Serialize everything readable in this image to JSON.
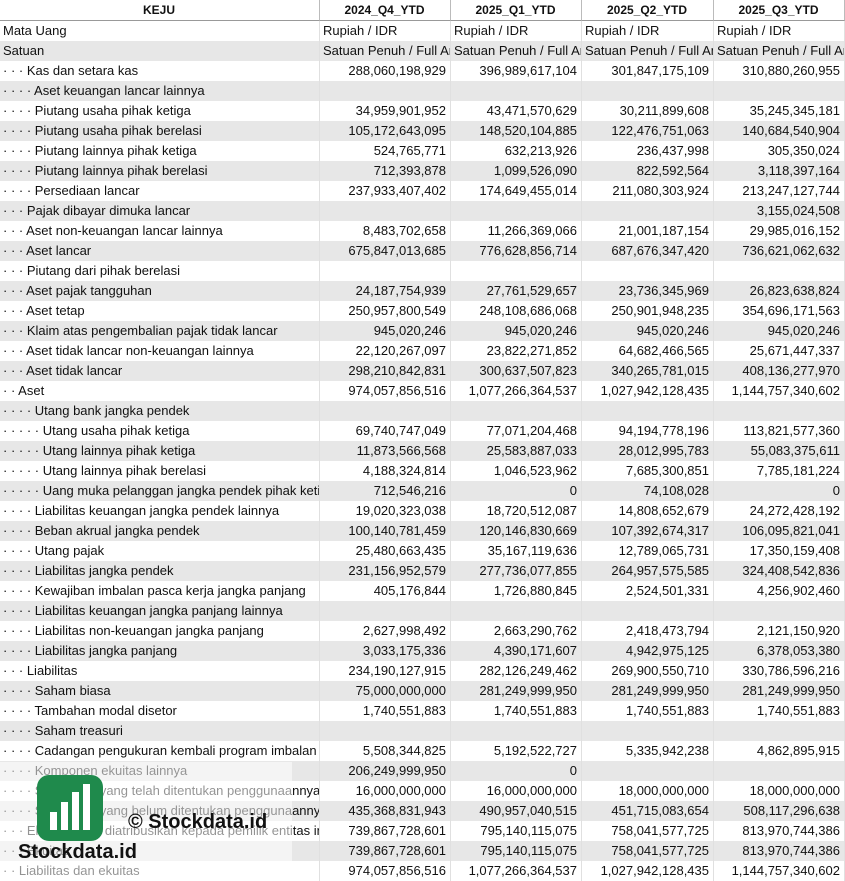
{
  "table": {
    "header": [
      "KEJU",
      "2024_Q4_YTD",
      "2025_Q1_YTD",
      "2025_Q2_YTD",
      "2025_Q3_YTD"
    ],
    "rows": [
      [
        "Mata Uang",
        "Rupiah / IDR",
        "Rupiah / IDR",
        "Rupiah / IDR",
        "Rupiah / IDR"
      ],
      [
        "Satuan",
        "Satuan Penuh / Full Amount",
        "Satuan Penuh / Full Amount",
        "Satuan Penuh / Full Amount",
        "Satuan Penuh / Full Amount"
      ],
      [
        "· · · Kas dan setara kas",
        "288,060,198,929",
        "396,989,617,104",
        "301,847,175,109",
        "310,880,260,955"
      ],
      [
        "· · · · Aset keuangan lancar lainnya",
        null,
        null,
        null,
        null
      ],
      [
        "· · · · Piutang usaha pihak ketiga",
        "34,959,901,952",
        "43,471,570,629",
        "30,211,899,608",
        "35,245,345,181"
      ],
      [
        "· · · · Piutang usaha pihak berelasi",
        "105,172,643,095",
        "148,520,104,885",
        "122,476,751,063",
        "140,684,540,904"
      ],
      [
        "· · · · Piutang lainnya pihak ketiga",
        "524,765,771",
        "632,213,926",
        "236,437,998",
        "305,350,024"
      ],
      [
        "· · · · Piutang lainnya pihak berelasi",
        "712,393,878",
        "1,099,526,090",
        "822,592,564",
        "3,118,397,164"
      ],
      [
        "· · · · Persediaan lancar",
        "237,933,407,402",
        "174,649,455,014",
        "211,080,303,924",
        "213,247,127,744"
      ],
      [
        "· · · Pajak dibayar dimuka lancar",
        null,
        null,
        null,
        "3,155,024,508"
      ],
      [
        "· · · Aset non-keuangan lancar lainnya",
        "8,483,702,658",
        "11,266,369,066",
        "21,001,187,154",
        "29,985,016,152"
      ],
      [
        "· · · Aset lancar",
        "675,847,013,685",
        "776,628,856,714",
        "687,676,347,420",
        "736,621,062,632"
      ],
      [
        "· · · Piutang dari pihak berelasi",
        null,
        null,
        null,
        null
      ],
      [
        "· · · Aset pajak tangguhan",
        "24,187,754,939",
        "27,761,529,657",
        "23,736,345,969",
        "26,823,638,824"
      ],
      [
        "· · · Aset tetap",
        "250,957,800,549",
        "248,108,686,068",
        "250,901,948,235",
        "354,696,171,563"
      ],
      [
        "· · · Klaim atas pengembalian pajak tidak lancar",
        "945,020,246",
        "945,020,246",
        "945,020,246",
        "945,020,246"
      ],
      [
        "· · · Aset tidak lancar non-keuangan lainnya",
        "22,120,267,097",
        "23,822,271,852",
        "64,682,466,565",
        "25,671,447,337"
      ],
      [
        "· · · Aset tidak lancar",
        "298,210,842,831",
        "300,637,507,823",
        "340,265,781,015",
        "408,136,277,970"
      ],
      [
        "· · Aset",
        "974,057,856,516",
        "1,077,266,364,537",
        "1,027,942,128,435",
        "1,144,757,340,602"
      ],
      [
        "· · · · Utang bank jangka pendek",
        null,
        null,
        null,
        null
      ],
      [
        "· · · · · Utang usaha pihak ketiga",
        "69,740,747,049",
        "77,071,204,468",
        "94,194,778,196",
        "113,821,577,360"
      ],
      [
        "· · · · · Utang lainnya pihak ketiga",
        "11,873,566,568",
        "25,583,887,033",
        "28,012,995,783",
        "55,083,375,611"
      ],
      [
        "· · · · · Utang lainnya pihak berelasi",
        "4,188,324,814",
        "1,046,523,962",
        "7,685,300,851",
        "7,785,181,224"
      ],
      [
        "· · · · · Uang muka pelanggan jangka pendek pihak ketiga",
        "712,546,216",
        "0",
        "74,108,028",
        "0"
      ],
      [
        "· · · · Liabilitas keuangan jangka pendek lainnya",
        "19,020,323,038",
        "18,720,512,087",
        "14,808,652,679",
        "24,272,428,192"
      ],
      [
        "· · · · Beban akrual jangka pendek",
        "100,140,781,459",
        "120,146,830,669",
        "107,392,674,317",
        "106,095,821,041"
      ],
      [
        "· · · · Utang pajak",
        "25,480,663,435",
        "35,167,119,636",
        "12,789,065,731",
        "17,350,159,408"
      ],
      [
        "· · · · Liabilitas jangka pendek",
        "231,156,952,579",
        "277,736,077,855",
        "264,957,575,585",
        "324,408,542,836"
      ],
      [
        "· · · · Kewajiban imbalan pasca kerja jangka panjang",
        "405,176,844",
        "1,726,880,845",
        "2,524,501,331",
        "4,256,902,460"
      ],
      [
        "· · · · Liabilitas keuangan jangka panjang lainnya",
        null,
        null,
        null,
        null
      ],
      [
        "· · · · Liabilitas non-keuangan jangka panjang",
        "2,627,998,492",
        "2,663,290,762",
        "2,418,473,794",
        "2,121,150,920"
      ],
      [
        "· · · · Liabilitas jangka panjang",
        "3,033,175,336",
        "4,390,171,607",
        "4,942,975,125",
        "6,378,053,380"
      ],
      [
        "· · · Liabilitas",
        "234,190,127,915",
        "282,126,249,462",
        "269,900,550,710",
        "330,786,596,216"
      ],
      [
        "· · · · Saham biasa",
        "75,000,000,000",
        "281,249,999,950",
        "281,249,999,950",
        "281,249,999,950"
      ],
      [
        "· · · · Tambahan modal disetor",
        "1,740,551,883",
        "1,740,551,883",
        "1,740,551,883",
        "1,740,551,883"
      ],
      [
        "· · · · Saham treasuri",
        null,
        null,
        null,
        null
      ],
      [
        "· · · · Cadangan pengukuran kembali program imbalan pasti",
        "5,508,344,825",
        "5,192,522,727",
        "5,335,942,238",
        "4,862,895,915"
      ],
      [
        "· · · · Komponen ekuitas lainnya",
        "206,249,999,950",
        "0",
        null,
        null
      ],
      [
        "· · · · Saldo laba yang telah ditentukan penggunaannya",
        "16,000,000,000",
        "16,000,000,000",
        "18,000,000,000",
        "18,000,000,000"
      ],
      [
        "· · · · Saldo laba yang belum ditentukan penggunaannya",
        "435,368,831,943",
        "490,957,040,515",
        "451,715,083,654",
        "508,117,296,638"
      ],
      [
        "· · · Ekuitas yang diatribusikan kepada pemilik entitas induk",
        "739,867,728,601",
        "795,140,115,075",
        "758,041,577,725",
        "813,970,744,386"
      ],
      [
        "· · · Ekuitas",
        "739,867,728,601",
        "795,140,115,075",
        "758,041,577,725",
        "813,970,744,386"
      ],
      [
        "· · Liabilitas dan ekuitas",
        "974,057,856,516",
        "1,077,266,364,537",
        "1,027,942,128,435",
        "1,144,757,340,602"
      ]
    ]
  },
  "watermark": {
    "copyright": "© Stockdata.id",
    "brand": "Stockdata.id"
  }
}
